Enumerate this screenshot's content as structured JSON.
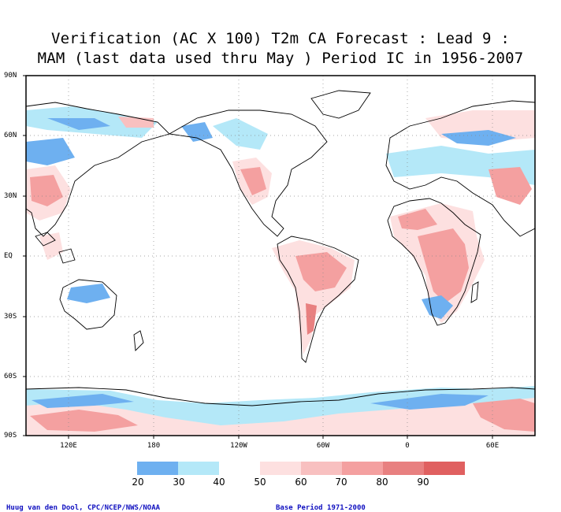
{
  "title_line1": "Verification (AC X 100) T2m CA Forecast : Lead 9 :",
  "title_line2": "MAM (last data used thru May ) Period IC in 1956-2007",
  "lat_labels": [
    "90N",
    "60N",
    "30N",
    "EQ",
    "30S",
    "60S",
    "90S"
  ],
  "lon_labels": [
    "120E",
    "180",
    "120W",
    "60W",
    "0",
    "60E"
  ],
  "legend": {
    "labels": [
      "20",
      "30",
      "40",
      "50",
      "60",
      "70",
      "80",
      "90"
    ],
    "colors": [
      "#6eb0f0",
      "#b4e8f8",
      "#ffffff",
      "#fde0e0",
      "#f8c0c0",
      "#f4a0a0",
      "#e88080",
      "#e06060",
      "#a8a8a8"
    ]
  },
  "credit_left": "Huug van den Dool, CPC/NCEP/NWS/NOAA",
  "credit_right": "Base Period 1971-2000"
}
